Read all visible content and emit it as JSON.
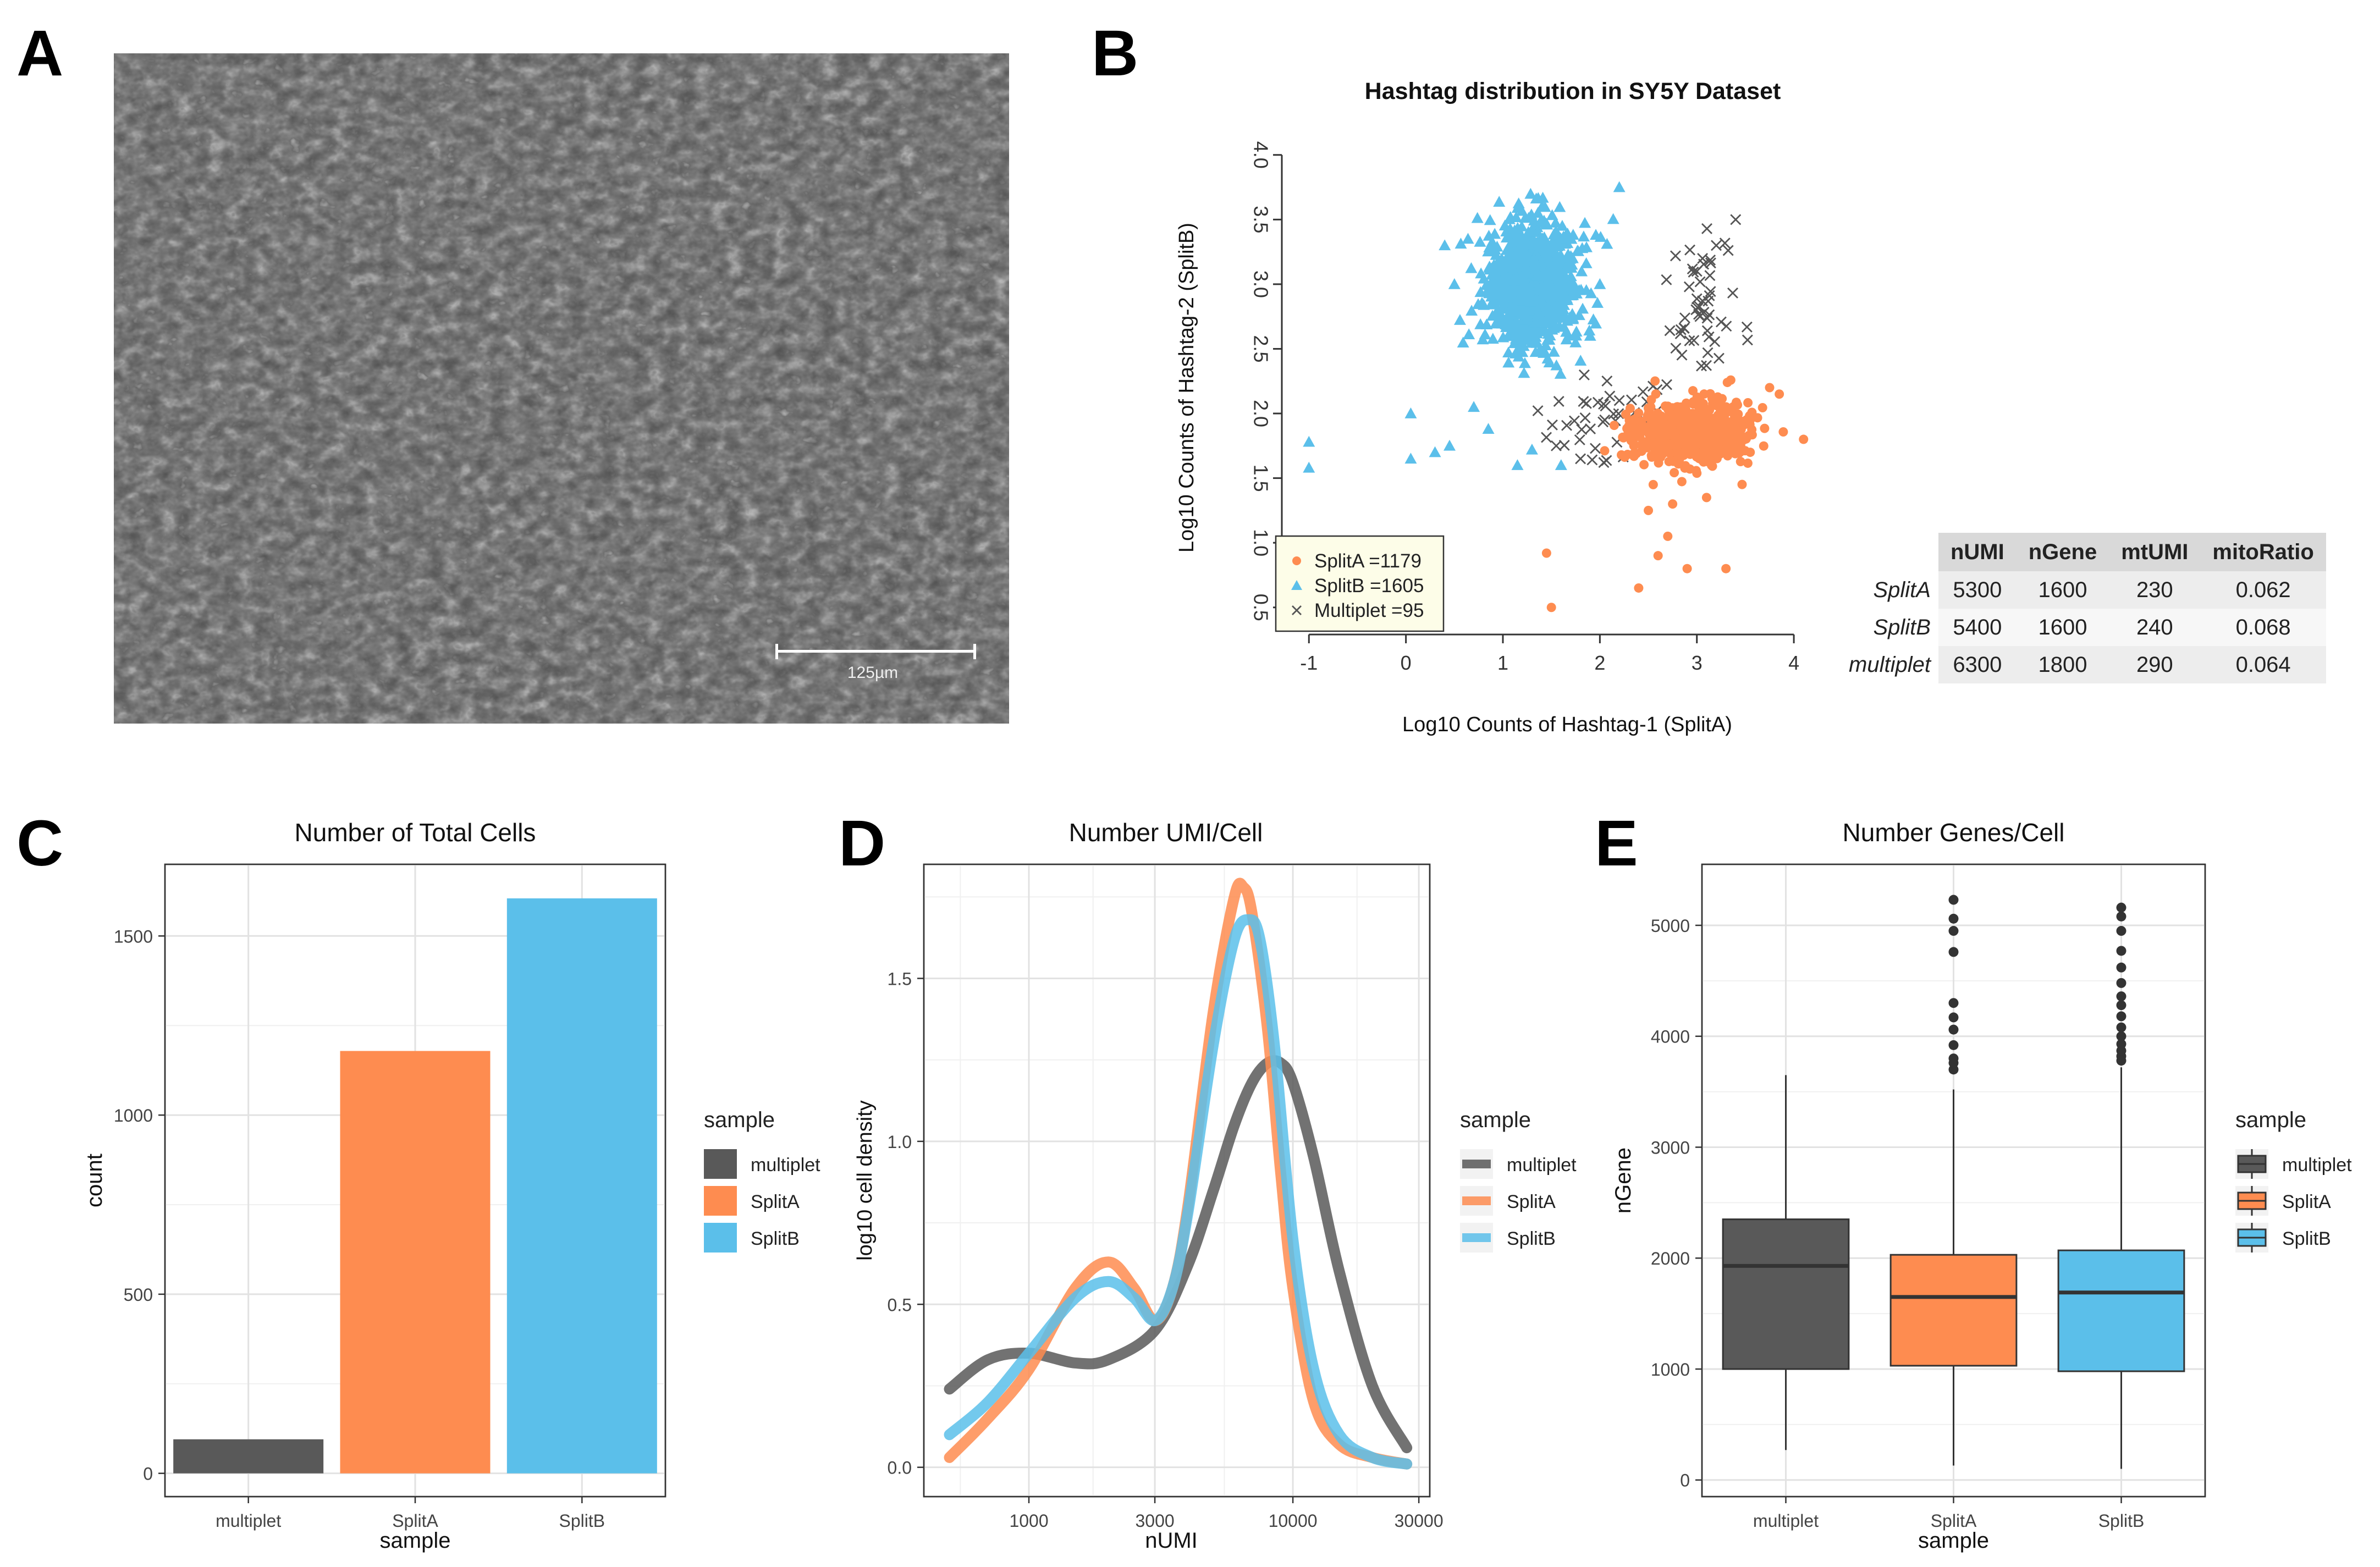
{
  "panels": {
    "a": "A",
    "b": "B",
    "c": "C",
    "d": "D",
    "e": "E"
  },
  "colors": {
    "multiplet": "#595959",
    "splitA": "#fe8c50",
    "splitB": "#5bbfea",
    "cross": "#555555"
  },
  "micrograph": {
    "scale_bar_label": "125µm"
  },
  "chart_data": [
    {
      "id": "B",
      "type": "scatter",
      "title": "Hashtag distribution in SY5Y Dataset",
      "xlabel": "Log10 Counts of Hashtag-1 (SplitA)",
      "ylabel": "Log10 Counts of Hashtag-2 (SplitB)",
      "xlim": [
        -1.2,
        4.3
      ],
      "ylim": [
        0.35,
        4.05
      ],
      "xticks": [
        "-1",
        "0",
        "1",
        "2",
        "3",
        "4"
      ],
      "yticks": [
        "0.5",
        "1.0",
        "1.5",
        "2.0",
        "2.5",
        "3.0",
        "3.5",
        "4.0"
      ],
      "legend": [
        "SplitA =1179",
        "SplitB =1605",
        "Multiplet =95"
      ],
      "series": [
        {
          "name": "SplitA",
          "n": 1179,
          "marker": "circle",
          "center": [
            2.95,
            1.85
          ],
          "spread": [
            0.3,
            0.12
          ],
          "outliers": [
            [
              2.5,
              1.25
            ],
            [
              2.7,
              1.05
            ],
            [
              2.6,
              0.9
            ],
            [
              2.9,
              0.8
            ],
            [
              1.45,
              0.92
            ],
            [
              1.5,
              0.5
            ],
            [
              3.3,
              0.8
            ],
            [
              2.4,
              0.65
            ],
            [
              3.55,
              1.7
            ],
            [
              3.75,
              2.2
            ],
            [
              3.85,
              2.15
            ],
            [
              4.1,
              1.8
            ],
            [
              2.35,
              1.75
            ],
            [
              2.55,
              1.45
            ],
            [
              2.75,
              1.3
            ],
            [
              3.1,
              1.35
            ]
          ]
        },
        {
          "name": "SplitB",
          "n": 1605,
          "marker": "triangle",
          "center": [
            1.3,
            3.0
          ],
          "spread": [
            0.22,
            0.25
          ],
          "outliers": [
            [
              -1.0,
              1.78
            ],
            [
              -1.0,
              1.58
            ],
            [
              0.05,
              2.0
            ],
            [
              0.05,
              1.65
            ],
            [
              0.3,
              1.7
            ],
            [
              0.45,
              1.75
            ],
            [
              0.7,
              2.05
            ],
            [
              0.85,
              1.88
            ],
            [
              1.15,
              1.6
            ],
            [
              1.3,
              1.72
            ],
            [
              1.6,
              1.6
            ],
            [
              1.9,
              2.6
            ],
            [
              2.2,
              3.75
            ],
            [
              0.4,
              3.3
            ],
            [
              0.5,
              3.0
            ],
            [
              2.0,
              3.0
            ]
          ]
        },
        {
          "name": "Multiplet",
          "n": 95,
          "marker": "cross",
          "center": [
            2.75,
            2.45
          ],
          "spread": [
            0.45,
            0.5
          ],
          "outliers": [
            [
              1.55,
              1.75
            ],
            [
              1.8,
              1.65
            ],
            [
              2.05,
              1.95
            ],
            [
              2.2,
              2.1
            ],
            [
              3.4,
              3.5
            ],
            [
              3.2,
              3.3
            ],
            [
              3.0,
              3.1
            ]
          ]
        }
      ]
    },
    {
      "id": "table",
      "type": "table",
      "columns": [
        "",
        "nUMI",
        "nGene",
        "mtUMI",
        "mitoRatio"
      ],
      "rows": [
        [
          "SplitA",
          "5300",
          "1600",
          "230",
          "0.062"
        ],
        [
          "SplitB",
          "5400",
          "1600",
          "240",
          "0.068"
        ],
        [
          "multiplet",
          "6300",
          "1800",
          "290",
          "0.064"
        ]
      ]
    },
    {
      "id": "C",
      "type": "bar",
      "title": "Number of Total Cells",
      "xlabel": "sample",
      "ylabel": "count",
      "categories": [
        "multiplet",
        "SplitA",
        "SplitB"
      ],
      "values": [
        95,
        1179,
        1605
      ],
      "ylim": [
        -65,
        1700
      ],
      "yticks": [
        "0",
        "500",
        "1000",
        "1500"
      ],
      "legend_title": "sample",
      "legend": [
        "multiplet",
        "SplitA",
        "SplitB"
      ]
    },
    {
      "id": "D",
      "type": "line",
      "title": "Number UMI/Cell",
      "xlabel": "nUMI",
      "ylabel": "log10 cell density",
      "xscale": "log10",
      "xlim": [
        400,
        33000
      ],
      "ylim": [
        -0.09,
        1.85
      ],
      "xticks": [
        "1000",
        "3000",
        "10000",
        "30000"
      ],
      "yticks": [
        "0.0",
        "0.5",
        "1.0",
        "1.5"
      ],
      "legend_title": "sample",
      "legend": [
        "multiplet",
        "SplitA",
        "SplitB"
      ],
      "series": [
        {
          "name": "multiplet",
          "x": [
            500,
            700,
            1000,
            1500,
            2000,
            3000,
            4000,
            5000,
            6000,
            7000,
            8000,
            9000,
            10000,
            12000,
            15000,
            20000,
            27000
          ],
          "y": [
            0.24,
            0.33,
            0.35,
            0.32,
            0.33,
            0.42,
            0.62,
            0.85,
            1.05,
            1.18,
            1.24,
            1.24,
            1.18,
            0.95,
            0.6,
            0.25,
            0.06
          ]
        },
        {
          "name": "SplitA",
          "x": [
            500,
            700,
            1000,
            1500,
            2000,
            2500,
            3000,
            3500,
            4000,
            5000,
            6000,
            6500,
            7000,
            8000,
            9000,
            10000,
            12000,
            15000,
            20000,
            27000
          ],
          "y": [
            0.03,
            0.15,
            0.3,
            0.55,
            0.63,
            0.55,
            0.45,
            0.55,
            0.8,
            1.4,
            1.75,
            1.78,
            1.7,
            1.35,
            0.9,
            0.55,
            0.2,
            0.07,
            0.03,
            0.01
          ]
        },
        {
          "name": "SplitB",
          "x": [
            500,
            700,
            1000,
            1500,
            2000,
            2500,
            3000,
            3500,
            4000,
            5000,
            6000,
            6800,
            7500,
            8500,
            10000,
            12000,
            15000,
            20000,
            27000
          ],
          "y": [
            0.1,
            0.2,
            0.35,
            0.52,
            0.57,
            0.52,
            0.45,
            0.55,
            0.78,
            1.3,
            1.62,
            1.68,
            1.62,
            1.3,
            0.7,
            0.3,
            0.1,
            0.03,
            0.01
          ]
        }
      ]
    },
    {
      "id": "E",
      "type": "box",
      "title": "Number Genes/Cell",
      "xlabel": "sample",
      "ylabel": "nGene",
      "categories": [
        "multiplet",
        "SplitA",
        "SplitB"
      ],
      "ylim": [
        -150,
        5550
      ],
      "yticks": [
        "0",
        "1000",
        "2000",
        "3000",
        "4000",
        "5000"
      ],
      "legend_title": "sample",
      "legend": [
        "multiplet",
        "SplitA",
        "SplitB"
      ],
      "boxes": [
        {
          "name": "multiplet",
          "min": 270,
          "q1": 1000,
          "median": 1930,
          "q3": 2350,
          "max": 3650,
          "outliers": []
        },
        {
          "name": "SplitA",
          "min": 130,
          "q1": 1030,
          "median": 1650,
          "q3": 2030,
          "max": 3520,
          "outliers": [
            3700,
            3760,
            3800,
            3920,
            4060,
            4170,
            4300,
            4760,
            4950,
            5060,
            5230
          ]
        },
        {
          "name": "SplitB",
          "min": 100,
          "q1": 980,
          "median": 1690,
          "q3": 2070,
          "max": 3720,
          "outliers": [
            3780,
            3820,
            3870,
            3930,
            4000,
            4080,
            4180,
            4280,
            4360,
            4480,
            4620,
            4770,
            4950,
            5080,
            5160
          ]
        }
      ]
    }
  ]
}
